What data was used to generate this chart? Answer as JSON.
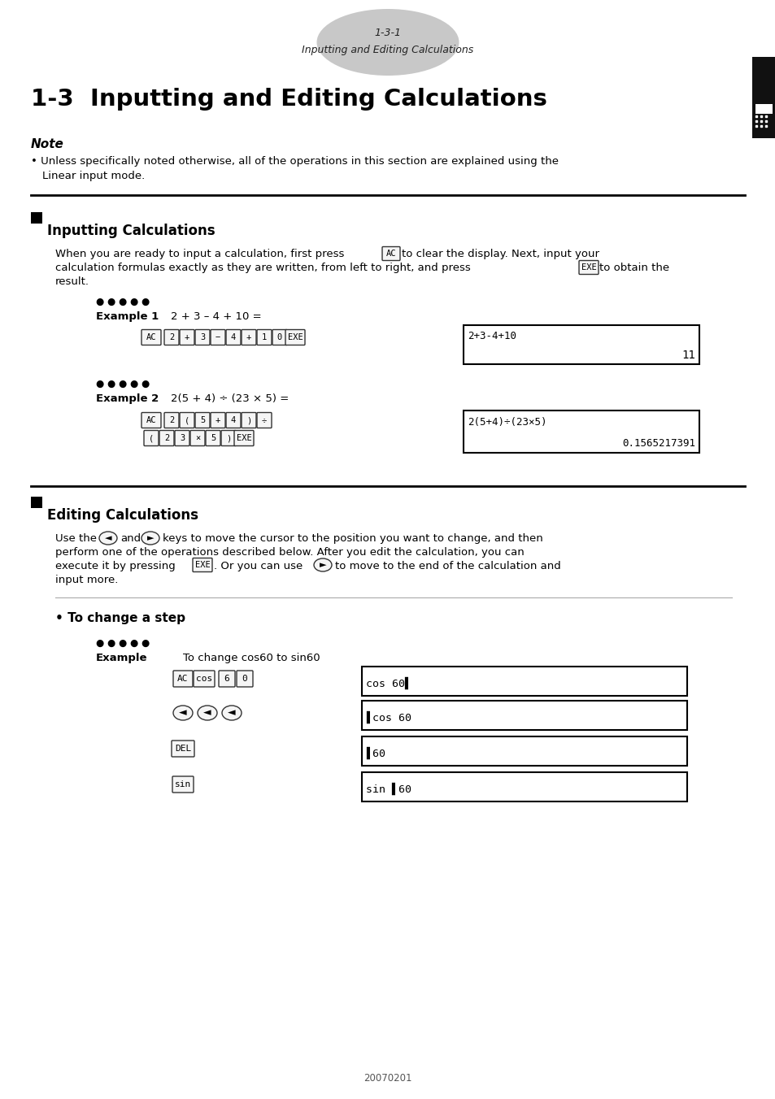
{
  "page_header_number": "1-3-1",
  "page_header_text": "Inputting and Editing Calculations",
  "main_title": "1-3  Inputting and Editing Calculations",
  "note_title": "Note",
  "section1_title": "Inputting Calculations",
  "section2_title": "Editing Calculations",
  "subsection1_title": "To change a step",
  "example3_desc": "To change cos60 to sin60",
  "example1_screen_line1": "2+3-4+10",
  "example1_screen_line2": "11",
  "example2_screen_line1": "2(5+4)÷(23×5)",
  "example2_screen_line2": "0.1565217391",
  "example3_screen1": "cos 60▌",
  "example3_screen2": "▌cos 60",
  "example3_screen3": "▌60",
  "example3_screen4": "sin ▌60",
  "footer": "20070201",
  "bg_color": "#ffffff",
  "text_color": "#000000",
  "header_oval_color": "#c8c8c8"
}
